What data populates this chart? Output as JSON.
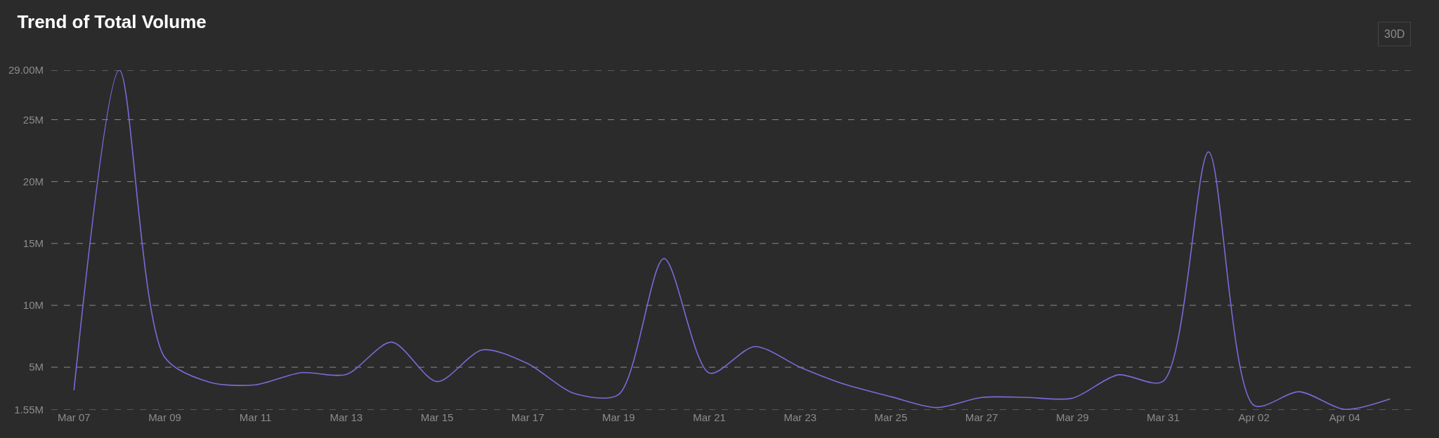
{
  "chart_data": {
    "type": "line",
    "title": "Trend of Total Volume",
    "annotations": [
      "30D"
    ],
    "x": [
      "--03-07",
      "--03-08",
      "--03-09",
      "--03-10",
      "--03-11",
      "--03-12",
      "--03-13",
      "--03-14",
      "--03-15",
      "--03-16",
      "--03-17",
      "--03-18",
      "--03-19",
      "--03-20",
      "--03-21",
      "--03-22",
      "--03-23",
      "--03-24",
      "--03-25",
      "--03-26",
      "--03-27",
      "--03-28",
      "--03-29",
      "--03-30",
      "--03-31",
      "--04-01",
      "--04-02",
      "--04-03",
      "--04-04",
      "--04-05"
    ],
    "series": [
      {
        "color": "#7b6ad8",
        "values": [
          3140000,
          29000000,
          5800000,
          3780000,
          3580000,
          4560000,
          4420000,
          7030000,
          3840000,
          6400000,
          5290000,
          2910000,
          2790000,
          13780000,
          4530000,
          6670000,
          5000000,
          3600000,
          2620000,
          1740000,
          2560000,
          2560000,
          2500000,
          4380000,
          3870000,
          22400000,
          1920000,
          3020000,
          1590000,
          2440000
        ]
      }
    ],
    "xlim": [
      "--03-06T12:00",
      "--04-05T11:00"
    ],
    "xticks": [
      {
        "value": "--03-07",
        "label": "Mar 07"
      },
      {
        "value": "--03-09",
        "label": "Mar 09"
      },
      {
        "value": "--03-11",
        "label": "Mar 11"
      },
      {
        "value": "--03-13",
        "label": "Mar 13"
      },
      {
        "value": "--03-15",
        "label": "Mar 15"
      },
      {
        "value": "--03-17",
        "label": "Mar 17"
      },
      {
        "value": "--03-19",
        "label": "Mar 19"
      },
      {
        "value": "--03-21",
        "label": "Mar 21"
      },
      {
        "value": "--03-23",
        "label": "Mar 23"
      },
      {
        "value": "--03-25",
        "label": "Mar 25"
      },
      {
        "value": "--03-27",
        "label": "Mar 27"
      },
      {
        "value": "--03-29",
        "label": "Mar 29"
      },
      {
        "value": "--03-31",
        "label": "Mar 31"
      },
      {
        "value": "--04-02",
        "label": "Apr 02"
      },
      {
        "value": "--04-04",
        "label": "Apr 04"
      }
    ],
    "ylim": [
      1550000,
      29000000
    ],
    "yticks": [
      {
        "value": 1550000,
        "label": "1.55M"
      },
      {
        "value": 5000000,
        "label": "5M"
      },
      {
        "value": 10000000,
        "label": "10M"
      },
      {
        "value": 15000000,
        "label": "15M"
      },
      {
        "value": 20000000,
        "label": "20M"
      },
      {
        "value": 25000000,
        "label": "25M"
      },
      {
        "value": 29000000,
        "label": "29.00M"
      }
    ],
    "grid": "y",
    "marker": "none",
    "line_style": "solid"
  }
}
